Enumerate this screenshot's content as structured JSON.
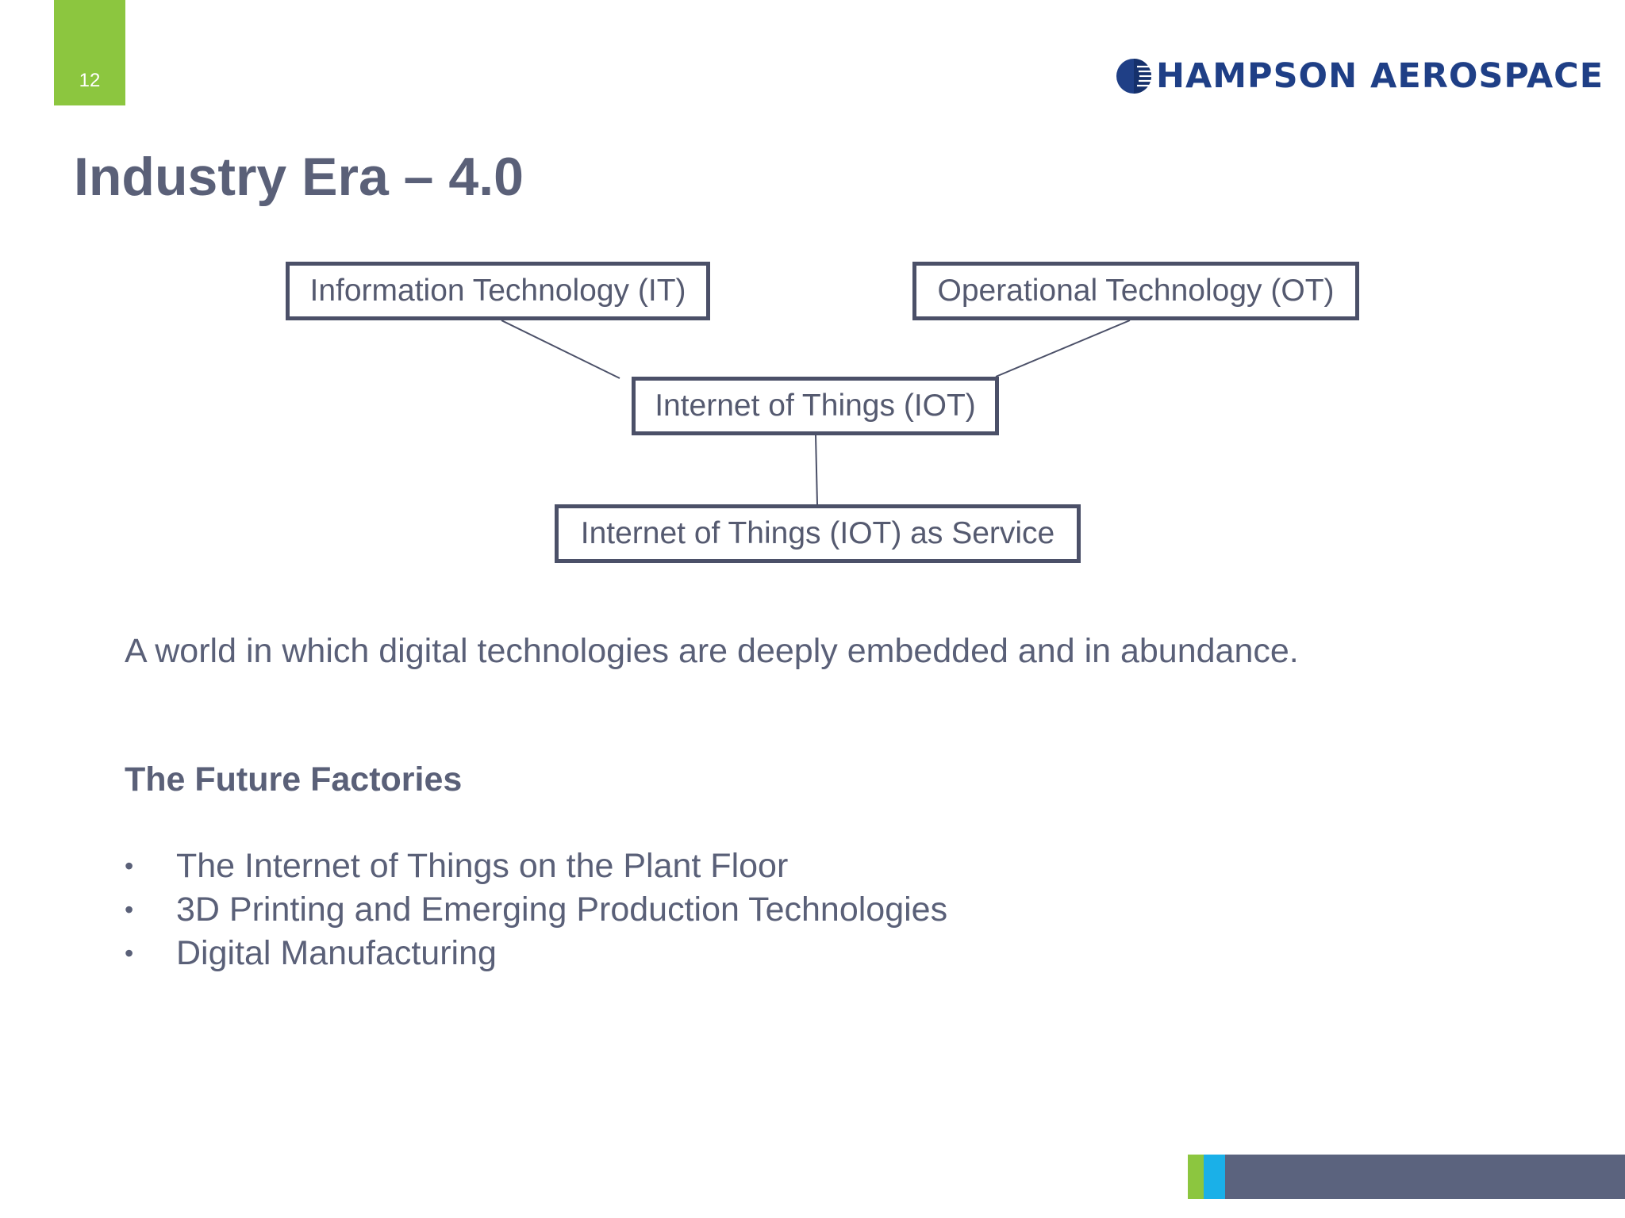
{
  "slide": {
    "page_number": "12",
    "title": "Industry Era – 4.0"
  },
  "logo": {
    "text": "HAMPSON AEROSPACE",
    "icon": "globe-icon",
    "color": "#1f3f86"
  },
  "diagram": {
    "nodes": {
      "it": "Information Technology (IT)",
      "ot": "Operational Technology (OT)",
      "iot": "Internet of Things (IOT)",
      "service": "Internet of Things (IOT) as Service"
    }
  },
  "body": {
    "tagline": "A world in which digital technologies are deeply embedded and in abundance.",
    "subheading": "The Future Factories",
    "bullet_marker": "•",
    "bullets": [
      "The Internet of Things on the Plant Floor",
      "3D Printing and Emerging Production Technologies",
      "Digital Manufacturing"
    ]
  },
  "colors": {
    "accent_green": "#8cc63f",
    "accent_blue": "#1ab0e8",
    "footer_slate": "#5b637e",
    "text": "#5a6078"
  }
}
